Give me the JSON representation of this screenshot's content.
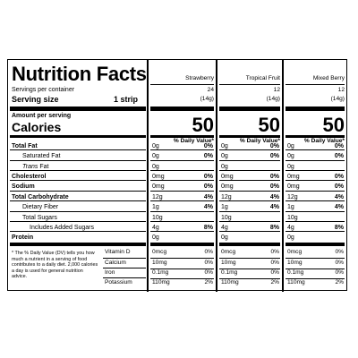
{
  "title": "Nutrition Facts",
  "servings_label": "Servings per container",
  "serving_size_label": "Serving size",
  "serving_size_value": "1 strip",
  "amount_per_serving": "Amount per serving",
  "calories_label": "Calories",
  "dv_header": "% Daily Value*",
  "nutrient_labels": {
    "total_fat": "Total Fat",
    "saturated_fat": "Saturated Fat",
    "trans_fat": "Trans",
    "trans_fat_suffix": " Fat",
    "cholesterol": "Cholesterol",
    "sodium": "Sodium",
    "total_carb": "Total Carbohydrate",
    "fiber": "Dietary Fiber",
    "sugars": "Total Sugars",
    "added_sugars": "Includes Added Sugars",
    "protein": "Protein"
  },
  "footnote": "* The % Daily Value (DV) tells you how much a nutrient in a serving of food contributes to a daily diet. 2,000 calories a day is used for general nutrition advice.",
  "vitamin_labels": [
    "Vitamin D",
    "Calcium",
    "Iron",
    "Potassium"
  ],
  "flavors": [
    {
      "name": "Strawberry",
      "servings": "24",
      "serving_g": "(14g)",
      "calories": "50",
      "fat": [
        "0g",
        "0%"
      ],
      "satfat": [
        "0g",
        "0%"
      ],
      "trans": "0g",
      "chol": [
        "0mg",
        "0%"
      ],
      "sodium": [
        "0mg",
        "0%"
      ],
      "carb": [
        "12g",
        "4%"
      ],
      "fiber": [
        "1g",
        "4%"
      ],
      "sugars": "10g",
      "added": [
        "4g",
        "8%"
      ],
      "protein": "0g",
      "vit": [
        [
          "0mcg",
          "0%"
        ],
        [
          "10mg",
          "0%"
        ],
        [
          "0.1mg",
          "0%"
        ],
        [
          "110mg",
          "2%"
        ]
      ]
    },
    {
      "name": "Tropical Fruit",
      "servings": "12",
      "serving_g": "(14g)",
      "calories": "50",
      "fat": [
        "0g",
        "0%"
      ],
      "satfat": [
        "0g",
        "0%"
      ],
      "trans": "0g",
      "chol": [
        "0mg",
        "0%"
      ],
      "sodium": [
        "0mg",
        "0%"
      ],
      "carb": [
        "12g",
        "4%"
      ],
      "fiber": [
        "1g",
        "4%"
      ],
      "sugars": "10g",
      "added": [
        "4g",
        "8%"
      ],
      "protein": "0g",
      "vit": [
        [
          "0mcg",
          "0%"
        ],
        [
          "10mg",
          "0%"
        ],
        [
          "0.1mg",
          "0%"
        ],
        [
          "110mg",
          "2%"
        ]
      ]
    },
    {
      "name": "Mixed Berry",
      "servings": "12",
      "serving_g": "(14g)",
      "calories": "50",
      "fat": [
        "0g",
        "0%"
      ],
      "satfat": [
        "0g",
        "0%"
      ],
      "trans": "0g",
      "chol": [
        "0mg",
        "0%"
      ],
      "sodium": [
        "0mg",
        "0%"
      ],
      "carb": [
        "12g",
        "4%"
      ],
      "fiber": [
        "1g",
        "4%"
      ],
      "sugars": "10g",
      "added": [
        "4g",
        "8%"
      ],
      "protein": "0g",
      "vit": [
        [
          "0mcg",
          "0%"
        ],
        [
          "10mg",
          "0%"
        ],
        [
          "0.1mg",
          "0%"
        ],
        [
          "110mg",
          "2%"
        ]
      ]
    }
  ]
}
